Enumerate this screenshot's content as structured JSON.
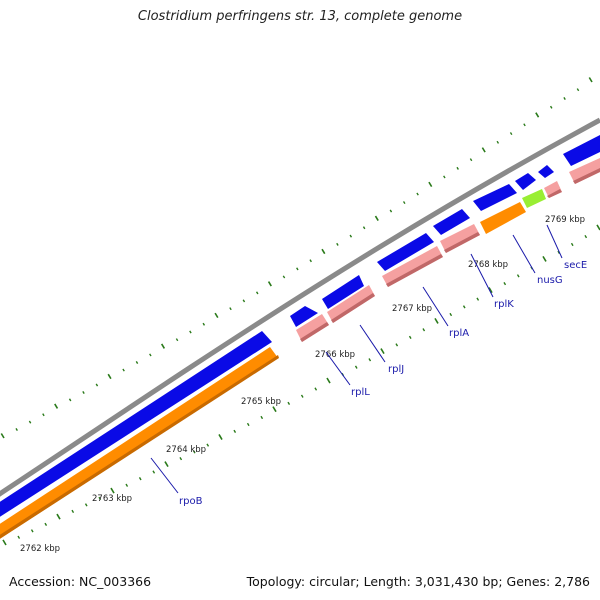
{
  "title": "Clostridium perfringens str. 13, complete genome",
  "footer": {
    "accession": "Accession: NC_003366",
    "summary": "Topology: circular; Length: 3,031,430 bp; Genes: 2,786"
  },
  "colors": {
    "backbone": "#8a8a8a",
    "cds": "#0a0ae6",
    "gene": "#f5a0a0",
    "rrna_like": "#ff8c00",
    "other": "#99ee33",
    "ticks": "#2a7a1a",
    "label_line": "#1a1aaa"
  },
  "kbp_ticks": [
    {
      "label": "2762 kbp"
    },
    {
      "label": "2763 kbp"
    },
    {
      "label": "2764 kbp"
    },
    {
      "label": "2765 kbp"
    },
    {
      "label": "2766 kbp"
    },
    {
      "label": "2767 kbp"
    },
    {
      "label": "2768 kbp"
    },
    {
      "label": "2769 kbp"
    }
  ],
  "gene_labels": [
    {
      "name": "rpoB"
    },
    {
      "name": "rplL"
    },
    {
      "name": "rplJ"
    },
    {
      "name": "rplA"
    },
    {
      "name": "rplK"
    },
    {
      "name": "nusG"
    },
    {
      "name": "secE"
    }
  ]
}
